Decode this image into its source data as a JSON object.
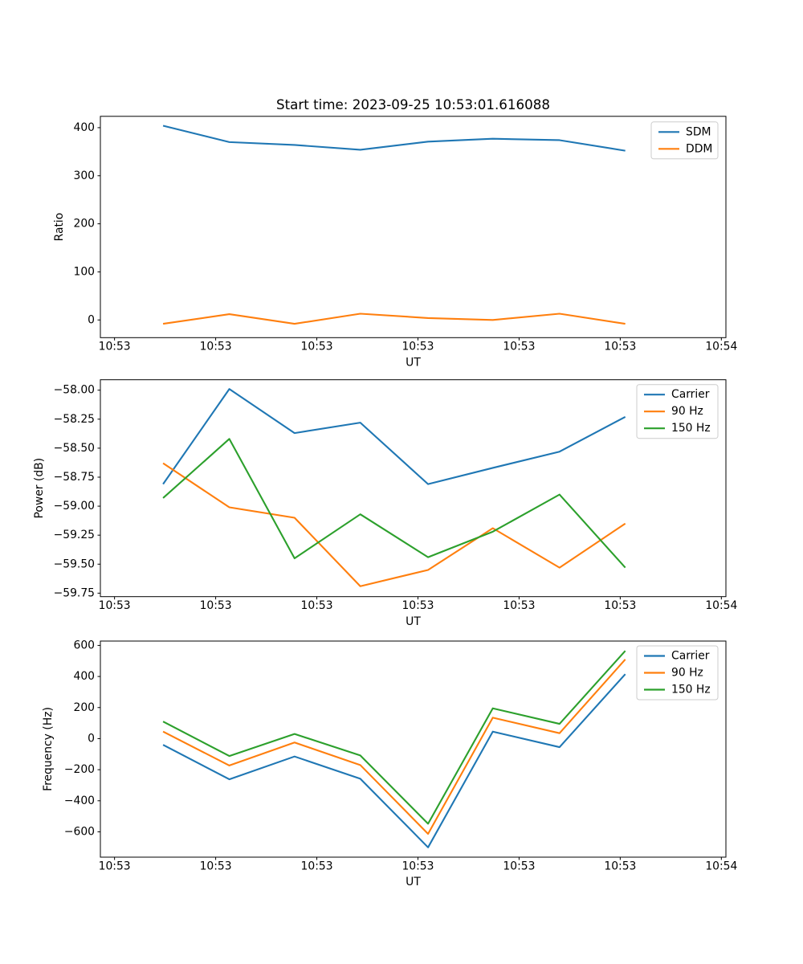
{
  "figure": {
    "title": "Start time: 2023-09-25 10:53:01.616088",
    "background": "#ffffff",
    "text_color": "#000000"
  },
  "chart_data": [
    {
      "type": "line",
      "name": "ratio",
      "title": "",
      "xlabel": "UT",
      "ylabel": "Ratio",
      "grid": false,
      "x_tick_seconds": [
        0,
        10,
        20,
        30,
        40,
        50,
        60
      ],
      "x_tick_labels": [
        "10:53",
        "10:53",
        "10:53",
        "10:53",
        "10:53",
        "10:53",
        "10:54"
      ],
      "xlim_seconds": [
        -1.4,
        60.45
      ],
      "ylim": [
        -36.8,
        423.6
      ],
      "y_tick_values": [
        0,
        100,
        200,
        300,
        400
      ],
      "y_tick_labels": [
        "0",
        "100",
        "200",
        "300",
        "400"
      ],
      "x_seconds": [
        4.8,
        11.35,
        17.8,
        24.3,
        31.0,
        37.4,
        44.0,
        50.5
      ],
      "series": [
        {
          "name": "SDM",
          "color": "#1f77b4",
          "values": [
            404,
            370,
            364,
            354,
            371,
            377,
            374,
            352
          ]
        },
        {
          "name": "DDM",
          "color": "#ff7f0e",
          "values": [
            -8,
            12,
            -8,
            13,
            4,
            0,
            13,
            -8
          ]
        }
      ],
      "legend": {
        "position": "upper right",
        "entries": [
          "SDM",
          "DDM"
        ]
      }
    },
    {
      "type": "line",
      "name": "power",
      "title": "",
      "xlabel": "UT",
      "ylabel": "Power (dB)",
      "grid": false,
      "x_tick_seconds": [
        0,
        10,
        20,
        30,
        40,
        50,
        60
      ],
      "x_tick_labels": [
        "10:53",
        "10:53",
        "10:53",
        "10:53",
        "10:53",
        "10:53",
        "10:54"
      ],
      "xlim_seconds": [
        -1.4,
        60.45
      ],
      "ylim": [
        -59.78,
        -57.91
      ],
      "y_tick_values": [
        -58.0,
        -58.25,
        -58.5,
        -58.75,
        -59.0,
        -59.25,
        -59.5,
        -59.75
      ],
      "y_tick_labels": [
        "−58.00",
        "−58.25",
        "−58.50",
        "−58.75",
        "−59.00",
        "−59.25",
        "−59.50",
        "−59.75"
      ],
      "x_seconds": [
        4.8,
        11.35,
        17.8,
        24.3,
        31.0,
        37.4,
        44.0,
        50.5
      ],
      "series": [
        {
          "name": "Carrier",
          "color": "#1f77b4",
          "values": [
            -58.81,
            -57.99,
            -58.37,
            -58.28,
            -58.81,
            -58.67,
            -58.53,
            -58.23
          ]
        },
        {
          "name": "90 Hz",
          "color": "#ff7f0e",
          "values": [
            -58.63,
            -59.01,
            -59.1,
            -59.69,
            -59.55,
            -59.19,
            -59.53,
            -59.15
          ]
        },
        {
          "name": "150 Hz",
          "color": "#2ca02c",
          "values": [
            -58.93,
            -58.42,
            -59.45,
            -59.07,
            -59.44,
            -59.22,
            -58.9,
            -59.53
          ]
        }
      ],
      "legend": {
        "position": "upper right",
        "entries": [
          "Carrier",
          "90 Hz",
          "150 Hz"
        ]
      }
    },
    {
      "type": "line",
      "name": "frequency",
      "title": "",
      "xlabel": "UT",
      "ylabel": "Frequency (Hz)",
      "grid": false,
      "x_tick_seconds": [
        0,
        10,
        20,
        30,
        40,
        50,
        60
      ],
      "x_tick_labels": [
        "10:53",
        "10:53",
        "10:53",
        "10:53",
        "10:53",
        "10:53",
        "10:54"
      ],
      "xlim_seconds": [
        -1.4,
        60.45
      ],
      "ylim": [
        -763,
        628
      ],
      "y_tick_values": [
        600,
        400,
        200,
        0,
        -200,
        -400,
        -600
      ],
      "y_tick_labels": [
        "600",
        "400",
        "200",
        "0",
        "−200",
        "−400",
        "−600"
      ],
      "x_seconds": [
        4.8,
        11.35,
        17.8,
        24.3,
        31.0,
        37.4,
        44.0,
        50.5
      ],
      "series": [
        {
          "name": "Carrier",
          "color": "#1f77b4",
          "values": [
            -40,
            -262,
            -115,
            -258,
            -700,
            45,
            -55,
            415
          ]
        },
        {
          "name": "90 Hz",
          "color": "#ff7f0e",
          "values": [
            45,
            -173,
            -25,
            -170,
            -613,
            135,
            35,
            510
          ]
        },
        {
          "name": "150 Hz",
          "color": "#2ca02c",
          "values": [
            110,
            -112,
            30,
            -108,
            -548,
            195,
            95,
            565
          ]
        }
      ],
      "legend": {
        "position": "upper right",
        "entries": [
          "Carrier",
          "90 Hz",
          "150 Hz"
        ]
      }
    }
  ]
}
